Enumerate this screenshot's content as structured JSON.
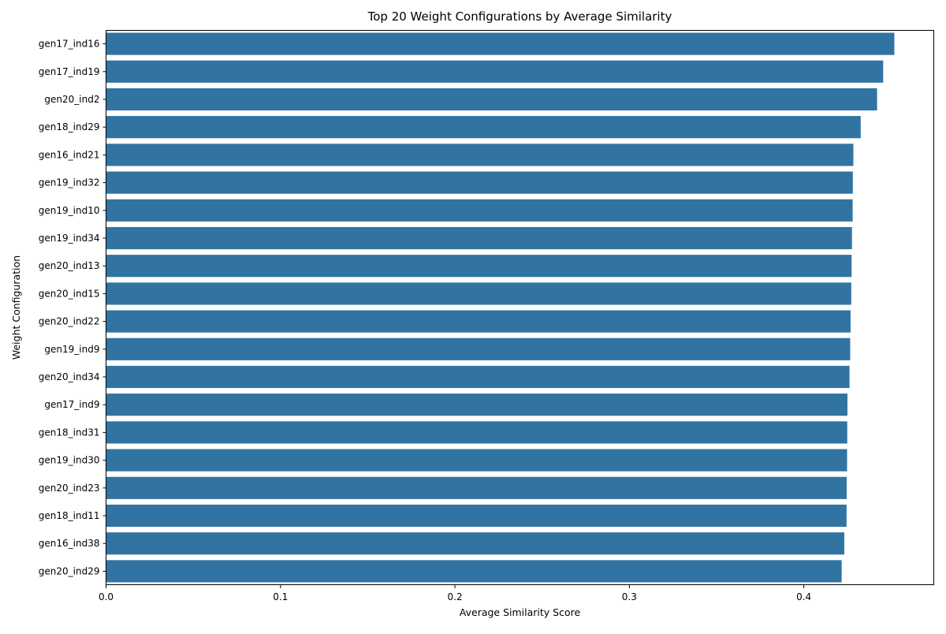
{
  "chart_data": {
    "type": "bar",
    "orientation": "horizontal",
    "title": "Top 20 Weight Configurations by Average Similarity",
    "xlabel": "Average Similarity Score",
    "ylabel": "Weight Configuration",
    "xlim": [
      0,
      0.4745
    ],
    "xticks": [
      0.0,
      0.1,
      0.2,
      0.3,
      0.4
    ],
    "xtick_labels": [
      "0.0",
      "0.1",
      "0.2",
      "0.3",
      "0.4"
    ],
    "grid": false,
    "bar_color": "#3274a1",
    "categories": [
      "gen17_ind16",
      "gen17_ind19",
      "gen20_ind2",
      "gen18_ind29",
      "gen16_ind21",
      "gen19_ind32",
      "gen19_ind10",
      "gen19_ind34",
      "gen20_ind13",
      "gen20_ind15",
      "gen20_ind22",
      "gen19_ind9",
      "gen20_ind34",
      "gen17_ind9",
      "gen18_ind31",
      "gen19_ind30",
      "gen20_ind23",
      "gen18_ind11",
      "gen16_ind38",
      "gen20_ind29"
    ],
    "values": [
      0.4519,
      0.4455,
      0.442,
      0.4326,
      0.4284,
      0.4281,
      0.428,
      0.4276,
      0.4274,
      0.4272,
      0.4268,
      0.4266,
      0.4262,
      0.425,
      0.4249,
      0.4248,
      0.4246,
      0.4245,
      0.4232,
      0.4217
    ]
  }
}
